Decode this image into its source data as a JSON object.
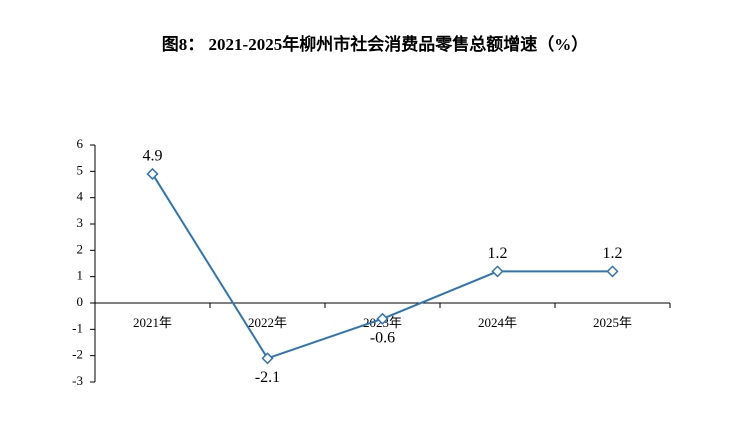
{
  "chart_data": {
    "type": "line",
    "title": "图8：  2021-2025年柳州市社会消费品零售总额增速（%）",
    "categories": [
      "2021年",
      "2022年",
      "2023年",
      "2024年",
      "2025年"
    ],
    "values": [
      4.9,
      -2.1,
      -0.6,
      1.2,
      1.2
    ],
    "color": "#2e75b6",
    "ylim": [
      -3,
      6
    ],
    "yticks": [
      -3,
      -2,
      -1,
      0,
      1,
      2,
      3,
      4,
      5,
      6
    ]
  }
}
